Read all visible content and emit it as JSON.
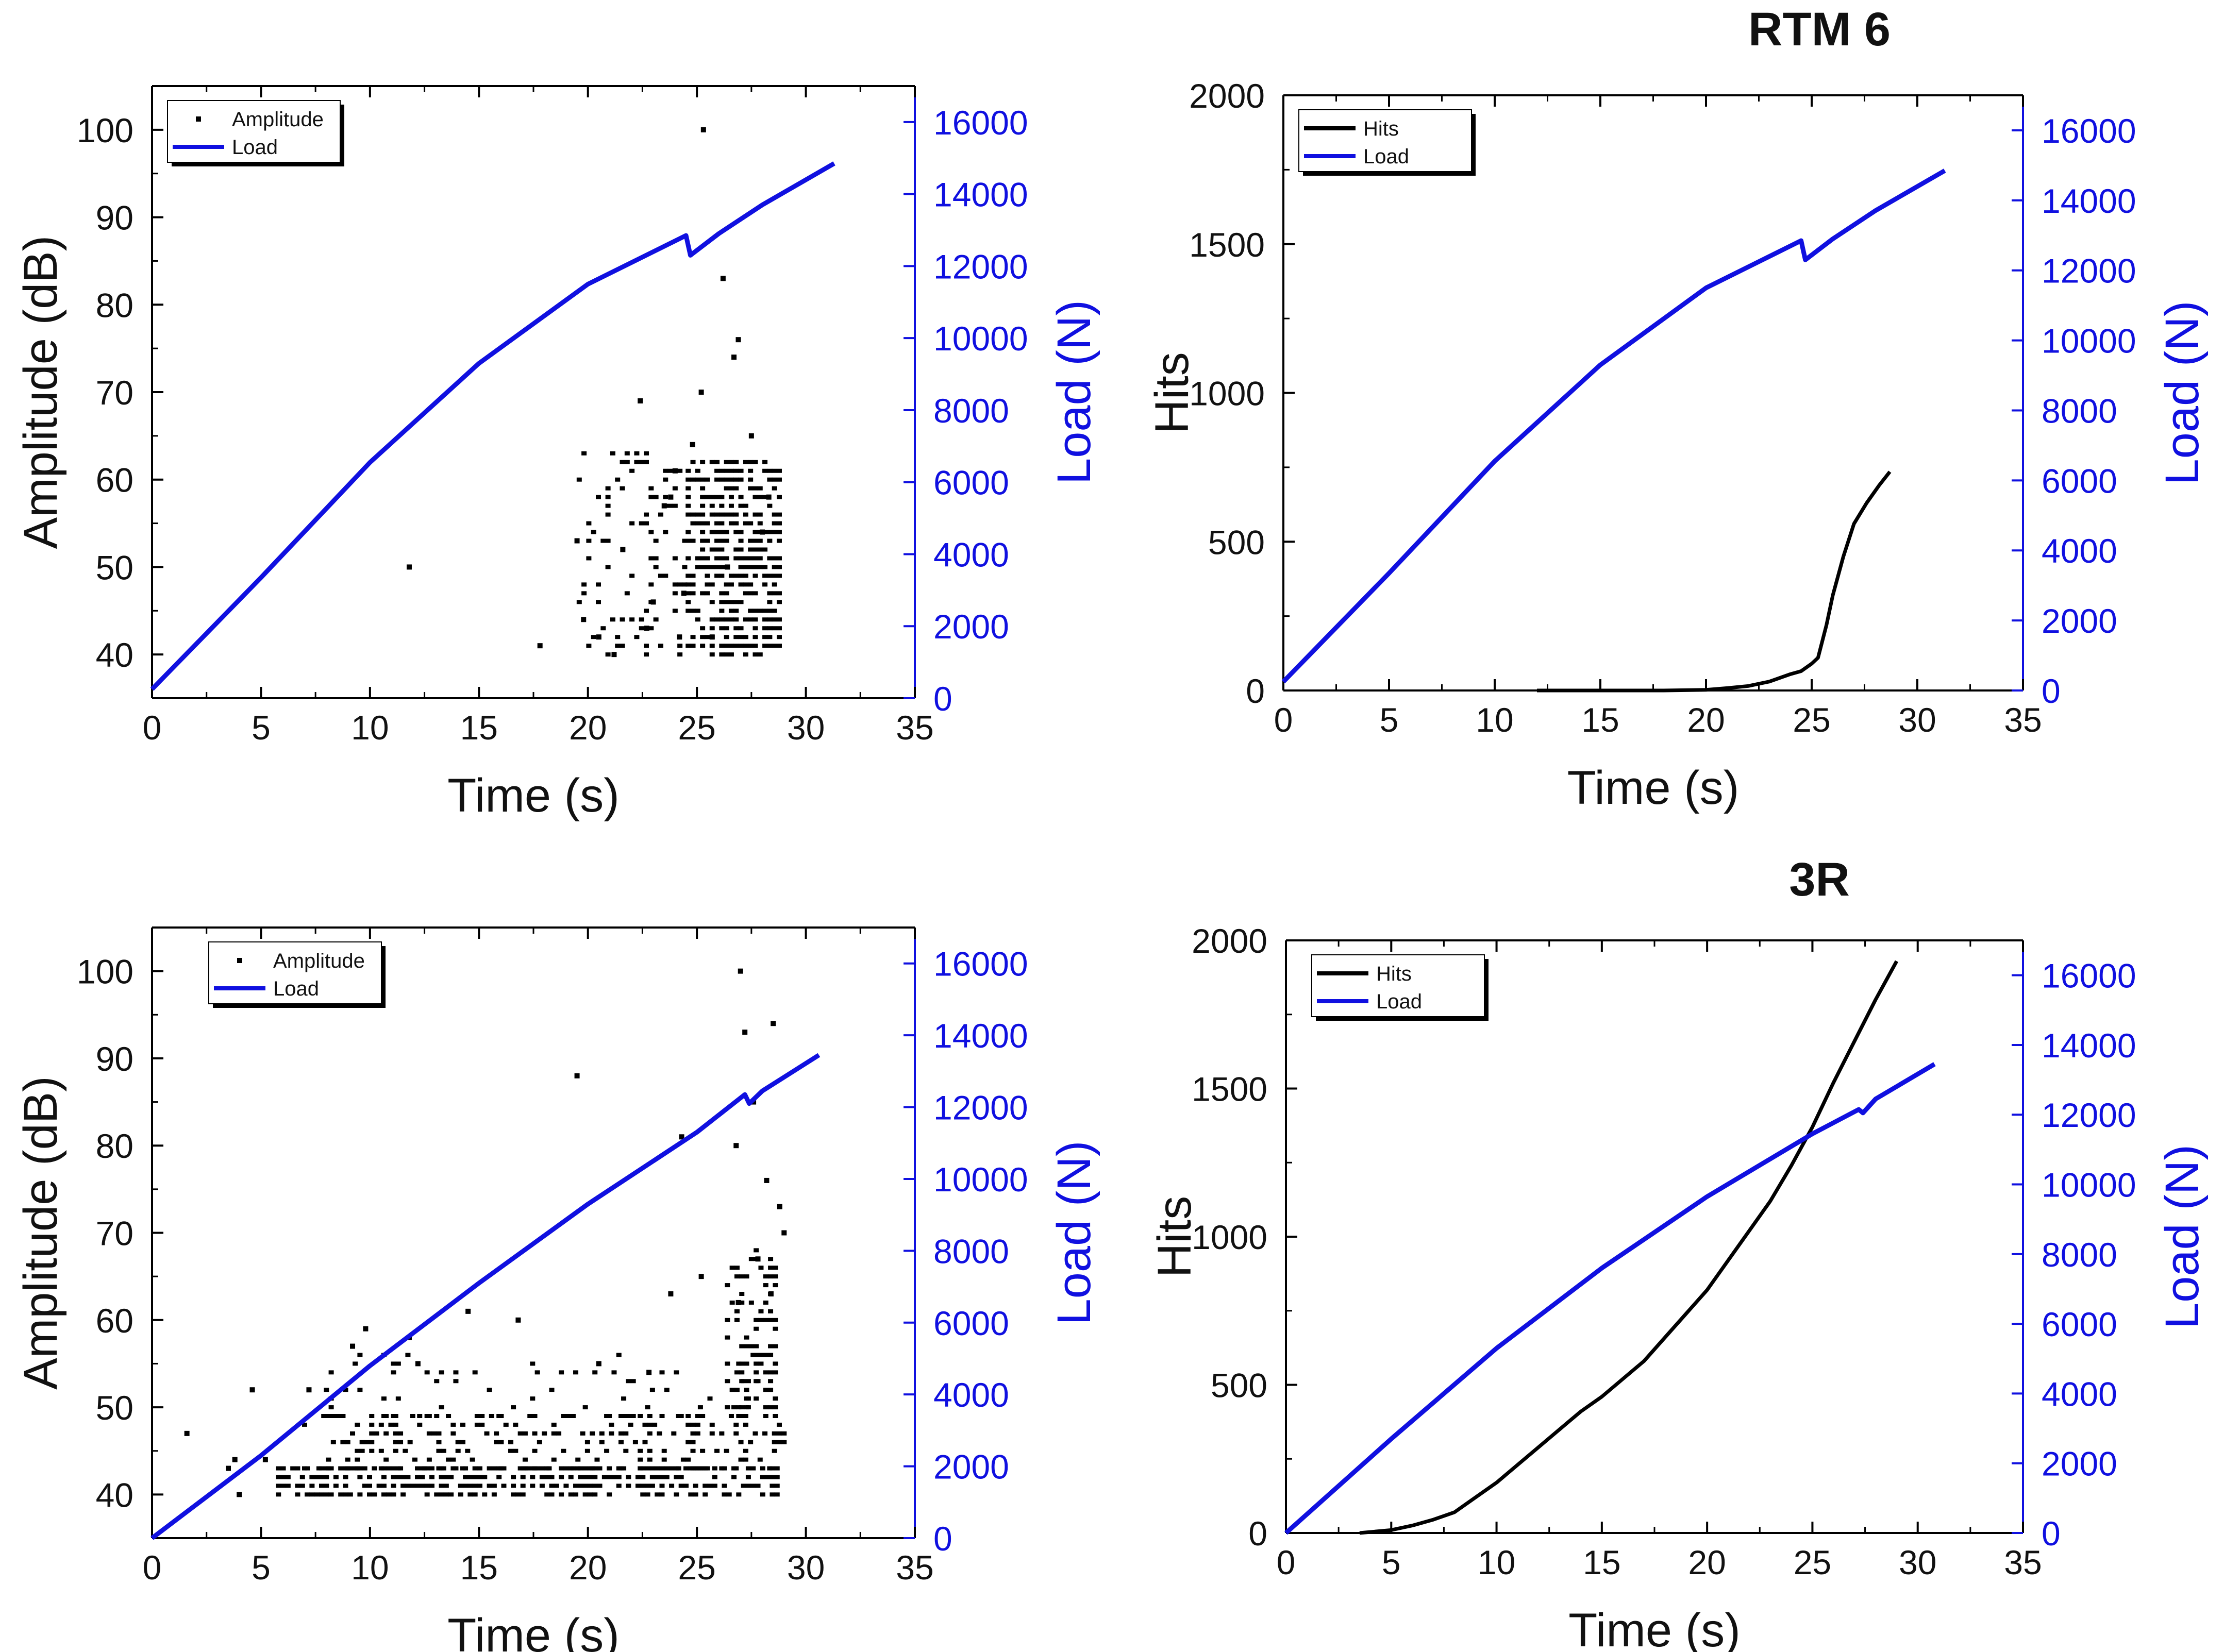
{
  "colors": {
    "amplitude": "#000000",
    "hits": "#000000",
    "load": "#1010e0",
    "axis": "#000000"
  },
  "chart_data": [
    {
      "type": "scatter",
      "title": "",
      "xlabel": "Time (s)",
      "ylabel": "Amplitude (dB)",
      "y2label": "Load (N)",
      "xlim": [
        0,
        35
      ],
      "ylim": [
        35,
        105
      ],
      "y2lim": [
        0,
        17000
      ],
      "xticks": [
        "0",
        "5",
        "10",
        "15",
        "20",
        "25",
        "30",
        "35"
      ],
      "yticks": [
        "40",
        "50",
        "60",
        "70",
        "80",
        "90",
        "100"
      ],
      "y2ticks": [
        "0",
        "2000",
        "4000",
        "6000",
        "8000",
        "10000",
        "12000",
        "14000",
        "16000"
      ],
      "legend_position": "top-left",
      "series": [
        {
          "name": "Amplitude",
          "axis": "left",
          "style": "points",
          "points": [
            [
              11.8,
              50
            ],
            [
              17.8,
              41
            ],
            [
              19.5,
              53
            ],
            [
              19.8,
              44
            ],
            [
              20.5,
              42
            ],
            [
              21.2,
              40
            ],
            [
              21.6,
              52
            ],
            [
              22.4,
              69
            ],
            [
              23,
              46
            ],
            [
              23.5,
              57
            ],
            [
              24,
              61
            ],
            [
              24.4,
              47
            ],
            [
              24.8,
              64
            ],
            [
              25.2,
              70
            ],
            [
              25.3,
              100
            ],
            [
              25.7,
              42
            ],
            [
              26.2,
              83
            ],
            [
              26.4,
              50
            ],
            [
              26.7,
              74
            ],
            [
              26.9,
              76
            ],
            [
              27.5,
              65
            ],
            [
              28,
              54
            ],
            [
              28.3,
              58
            ],
            [
              24.2,
              42
            ],
            [
              22.7,
              43
            ],
            [
              23.8,
              58
            ]
          ],
          "bands": [
            {
              "x0": 19.6,
              "x1": 24.6,
              "y0": 40,
              "y1": 63,
              "density": 0.18
            },
            {
              "x0": 24.6,
              "x1": 28.8,
              "y0": 40,
              "y1": 62,
              "density": 0.62
            }
          ]
        },
        {
          "name": "Load",
          "axis": "right",
          "style": "line",
          "points": [
            [
              0,
              250
            ],
            [
              5,
              3350
            ],
            [
              10,
              6550
            ],
            [
              15,
              9300
            ],
            [
              20,
              11500
            ],
            [
              24.5,
              12850
            ],
            [
              24.7,
              12300
            ],
            [
              26,
              12900
            ],
            [
              28,
              13700
            ],
            [
              31.3,
              14850
            ]
          ]
        }
      ]
    },
    {
      "type": "line",
      "title": "RTM 6",
      "xlabel": "Time (s)",
      "ylabel": "Hits",
      "y2label": "Load (N)",
      "xlim": [
        0,
        35
      ],
      "ylim": [
        0,
        2000
      ],
      "y2lim": [
        0,
        17000
      ],
      "xticks": [
        "0",
        "5",
        "10",
        "15",
        "20",
        "25",
        "30",
        "35"
      ],
      "yticks": [
        "0",
        "500",
        "1000",
        "1500",
        "2000"
      ],
      "y2ticks": [
        "0",
        "2000",
        "4000",
        "6000",
        "8000",
        "10000",
        "12000",
        "14000",
        "16000"
      ],
      "legend_position": "top-left",
      "series": [
        {
          "name": "Hits",
          "axis": "left",
          "style": "line",
          "points": [
            [
              12,
              0
            ],
            [
              18,
              0
            ],
            [
              20,
              2
            ],
            [
              21,
              8
            ],
            [
              22,
              15
            ],
            [
              23,
              30
            ],
            [
              24,
              55
            ],
            [
              24.5,
              65
            ],
            [
              25,
              90
            ],
            [
              25.3,
              110
            ],
            [
              25.7,
              220
            ],
            [
              26,
              320
            ],
            [
              26.5,
              450
            ],
            [
              27,
              560
            ],
            [
              27.6,
              630
            ],
            [
              28.2,
              690
            ],
            [
              28.7,
              735
            ]
          ]
        },
        {
          "name": "Load",
          "axis": "right",
          "style": "line",
          "points": [
            [
              0,
              250
            ],
            [
              5,
              3350
            ],
            [
              10,
              6550
            ],
            [
              15,
              9300
            ],
            [
              20,
              11500
            ],
            [
              24.5,
              12850
            ],
            [
              24.7,
              12300
            ],
            [
              26,
              12900
            ],
            [
              28,
              13700
            ],
            [
              31.3,
              14850
            ]
          ]
        }
      ]
    },
    {
      "type": "scatter",
      "title": "",
      "xlabel": "Time (s)",
      "ylabel": "Amplitude (dB)",
      "y2label": "Load (N)",
      "xlim": [
        0,
        35
      ],
      "ylim": [
        35,
        105
      ],
      "y2lim": [
        0,
        17000
      ],
      "xticks": [
        "0",
        "5",
        "10",
        "15",
        "20",
        "25",
        "30",
        "35"
      ],
      "yticks": [
        "40",
        "50",
        "60",
        "70",
        "80",
        "90",
        "100"
      ],
      "y2ticks": [
        "0",
        "2000",
        "4000",
        "6000",
        "8000",
        "10000",
        "12000",
        "14000",
        "16000"
      ],
      "legend_position": "top-left",
      "series": [
        {
          "name": "Amplitude",
          "axis": "left",
          "style": "points",
          "points": [
            [
              1.6,
              47
            ],
            [
              3.8,
              44
            ],
            [
              4.6,
              52
            ],
            [
              5.2,
              44
            ],
            [
              7.2,
              52
            ],
            [
              9.2,
              57
            ],
            [
              9.8,
              59
            ],
            [
              11.8,
              58
            ],
            [
              14.5,
              61
            ],
            [
              16.8,
              60
            ],
            [
              19.5,
              88
            ],
            [
              23.8,
              63
            ],
            [
              25.2,
              65
            ],
            [
              26.8,
              80
            ],
            [
              27,
              100
            ],
            [
              27.2,
              93
            ],
            [
              27.6,
              85
            ],
            [
              28.2,
              76
            ],
            [
              28.5,
              94
            ],
            [
              28.8,
              73
            ],
            [
              29,
              70
            ],
            [
              27.8,
              67
            ],
            [
              28.4,
              63
            ],
            [
              26.9,
              62
            ],
            [
              12.2,
              55
            ],
            [
              20.5,
              55
            ],
            [
              22.8,
              54
            ],
            [
              24.3,
              81
            ],
            [
              3.5,
              43
            ],
            [
              4,
              40
            ]
          ],
          "bands": [
            {
              "x0": 5.8,
              "x1": 29.0,
              "y0": 40,
              "y1": 43,
              "density": 0.6
            },
            {
              "x0": 7.0,
              "x1": 29.0,
              "y0": 43,
              "y1": 49,
              "density": 0.28
            },
            {
              "x0": 8.0,
              "x1": 28.0,
              "y0": 49,
              "y1": 56,
              "density": 0.09
            },
            {
              "x0": 26.4,
              "x1": 28.8,
              "y0": 49,
              "y1": 68,
              "density": 0.35
            }
          ]
        },
        {
          "name": "Load",
          "axis": "right",
          "style": "line",
          "points": [
            [
              0,
              0
            ],
            [
              5,
              2300
            ],
            [
              10,
              4800
            ],
            [
              15,
              7100
            ],
            [
              20,
              9300
            ],
            [
              25,
              11300
            ],
            [
              27.2,
              12350
            ],
            [
              27.4,
              12100
            ],
            [
              28,
              12450
            ],
            [
              30.6,
              13450
            ]
          ]
        }
      ]
    },
    {
      "type": "line",
      "title": "3R",
      "xlabel": "Time (s)",
      "ylabel": "Hits",
      "y2label": "Load (N)",
      "xlim": [
        0,
        35
      ],
      "ylim": [
        0,
        2000
      ],
      "y2lim": [
        0,
        17000
      ],
      "xticks": [
        "0",
        "5",
        "10",
        "15",
        "20",
        "25",
        "30",
        "35"
      ],
      "yticks": [
        "0",
        "500",
        "1000",
        "1500",
        "2000"
      ],
      "y2ticks": [
        "0",
        "2000",
        "4000",
        "6000",
        "8000",
        "10000",
        "12000",
        "14000",
        "16000"
      ],
      "legend_position": "top-left",
      "series": [
        {
          "name": "Hits",
          "axis": "left",
          "style": "line",
          "points": [
            [
              3.5,
              0
            ],
            [
              5,
              10
            ],
            [
              6,
              25
            ],
            [
              7,
              45
            ],
            [
              8,
              70
            ],
            [
              9,
              120
            ],
            [
              10,
              170
            ],
            [
              11,
              230
            ],
            [
              12,
              290
            ],
            [
              13,
              350
            ],
            [
              14,
              410
            ],
            [
              15,
              460
            ],
            [
              16,
              520
            ],
            [
              17,
              580
            ],
            [
              18,
              660
            ],
            [
              19,
              740
            ],
            [
              20,
              820
            ],
            [
              21,
              920
            ],
            [
              22,
              1020
            ],
            [
              23,
              1120
            ],
            [
              24,
              1240
            ],
            [
              25,
              1370
            ],
            [
              26,
              1520
            ],
            [
              27,
              1660
            ],
            [
              28,
              1800
            ],
            [
              29,
              1930
            ]
          ]
        },
        {
          "name": "Load",
          "axis": "right",
          "style": "line",
          "points": [
            [
              0,
              0
            ],
            [
              5,
              2700
            ],
            [
              10,
              5300
            ],
            [
              15,
              7600
            ],
            [
              20,
              9650
            ],
            [
              25,
              11450
            ],
            [
              27.2,
              12150
            ],
            [
              27.4,
              12050
            ],
            [
              28,
              12450
            ],
            [
              30.8,
              13450
            ]
          ]
        }
      ]
    }
  ]
}
